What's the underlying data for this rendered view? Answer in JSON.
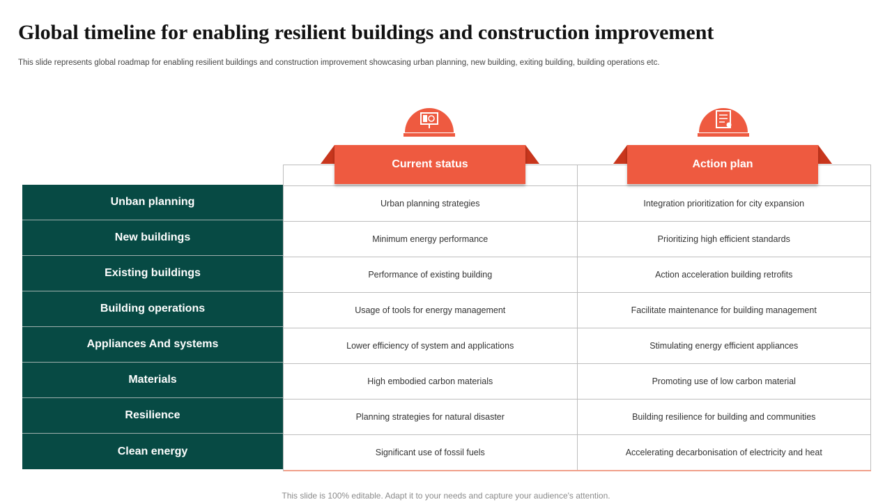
{
  "title": "Global timeline for enabling resilient buildings and construction improvement",
  "subtitle": "This slide represents global roadmap for enabling resilient buildings and construction improvement showcasing urban planning, new building, exiting building, building operations etc.",
  "columns": [
    {
      "label": "Current status",
      "icon": "presentation-board-icon"
    },
    {
      "label": "Action plan",
      "icon": "checklist-document-icon"
    }
  ],
  "rows": [
    {
      "label": "Unban planning",
      "current": "Urban  planning  strategies",
      "action": "Integration  prioritization  for  city  expansion"
    },
    {
      "label": "New buildings",
      "current": "Minimum  energy  performance",
      "action": "Prioritizing  high efficient  standards"
    },
    {
      "label": "Existing buildings",
      "current": "Performance  of existing building",
      "action": "Action acceleration  building  retrofits"
    },
    {
      "label": "Building operations",
      "current": "Usage  of tools for energy  management",
      "action": "Facilitate maintenance  for building  management"
    },
    {
      "label": "Appliances  And systems",
      "current": "Lower  efficiency  of system and applications",
      "action": "Stimulating  energy  efficient  appliances"
    },
    {
      "label": "Materials",
      "current": "High  embodied  carbon  materials",
      "action": "Promoting  use of low carbon  material"
    },
    {
      "label": "Resilience",
      "current": "Planning  strategies  for natural  disaster",
      "action": "Building  resilience  for building  and  communities"
    },
    {
      "label": "Clean energy",
      "current": "Significant  use  of fossil fuels",
      "action": "Accelerating  decarbonisation  of electricity  and heat"
    }
  ],
  "footer": "This slide is 100% editable. Adapt it to your needs and capture your audience's attention.",
  "colors": {
    "accent": "#ee5a40",
    "accent_dark": "#c8361d",
    "row_header_bg": "#074a44"
  }
}
